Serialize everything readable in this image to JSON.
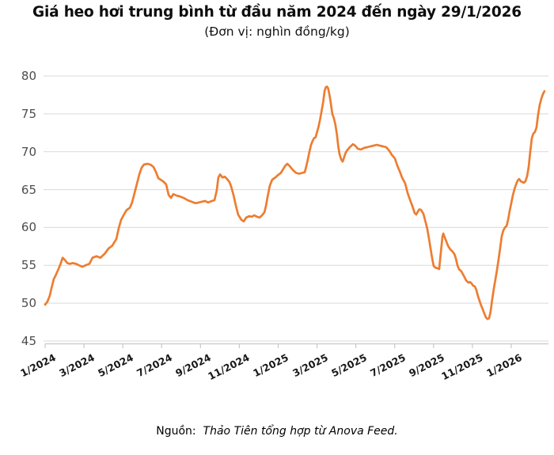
{
  "header": {
    "title": "Giá heo hơi trung bình từ đầu năm 2024 đến ngày 29/1/2026",
    "subtitle": "(Đơn vị: nghìn đồng/kg)"
  },
  "footer": {
    "source_label": "Nguồn:",
    "source_text": "Thảo Tiên tổng hợp từ Anova Feed."
  },
  "chart_data": {
    "type": "line",
    "title": "Giá heo hơi trung bình từ đầu năm 2024 đến ngày 29/1/2026",
    "unit": "nghìn đồng/kg",
    "legend_position": "none",
    "grid": "horizontal",
    "line_color": "#ED7D31",
    "gridline_color": "#d9d9d9",
    "axis_line_color": "#c9c9c9",
    "x_axis": {
      "tick_labels": [
        "1/2024",
        "3/2024",
        "5/2024",
        "7/2024",
        "9/2024",
        "11/2024",
        "1/2025",
        "3/2025",
        "5/2025",
        "7/2025",
        "9/2025",
        "11/2025",
        "1/2026"
      ],
      "tick_positions_months": [
        0,
        2,
        4,
        6,
        8,
        10,
        12,
        14,
        16,
        18,
        20,
        22,
        24
      ],
      "months_origin": "January 2024",
      "end_date_label": "29/1/2026"
    },
    "y_axis": {
      "ticks": [
        45,
        50,
        55,
        60,
        65,
        70,
        75,
        80
      ],
      "range": [
        45,
        80
      ]
    },
    "series": [
      {
        "name": "Giá heo hơi trung bình (nghìn đồng/kg)",
        "x_unit": "months since 1/2024",
        "points": [
          [
            0,
            49.8
          ],
          [
            0.12,
            50.2
          ],
          [
            0.24,
            51.0
          ],
          [
            0.33,
            52.0
          ],
          [
            0.45,
            53.2
          ],
          [
            0.53,
            53.6
          ],
          [
            0.65,
            54.3
          ],
          [
            0.77,
            55.0
          ],
          [
            0.9,
            56.0
          ],
          [
            1.02,
            55.7
          ],
          [
            1.14,
            55.3
          ],
          [
            1.26,
            55.2
          ],
          [
            1.43,
            55.3
          ],
          [
            1.59,
            55.2
          ],
          [
            1.75,
            55.0
          ],
          [
            1.92,
            54.8
          ],
          [
            2.08,
            55.0
          ],
          [
            2.28,
            55.2
          ],
          [
            2.44,
            56.0
          ],
          [
            2.65,
            56.2
          ],
          [
            2.85,
            56.0
          ],
          [
            3.06,
            56.5
          ],
          [
            3.26,
            57.2
          ],
          [
            3.46,
            57.6
          ],
          [
            3.67,
            58.5
          ],
          [
            3.79,
            59.9
          ],
          [
            3.91,
            61.0
          ],
          [
            4.08,
            61.8
          ],
          [
            4.2,
            62.3
          ],
          [
            4.36,
            62.6
          ],
          [
            4.48,
            63.3
          ],
          [
            4.6,
            64.5
          ],
          [
            4.73,
            65.8
          ],
          [
            4.85,
            67.0
          ],
          [
            4.97,
            67.9
          ],
          [
            5.09,
            68.3
          ],
          [
            5.26,
            68.4
          ],
          [
            5.42,
            68.3
          ],
          [
            5.58,
            68.0
          ],
          [
            5.71,
            67.3
          ],
          [
            5.83,
            66.5
          ],
          [
            5.95,
            66.3
          ],
          [
            6.07,
            66.1
          ],
          [
            6.23,
            65.7
          ],
          [
            6.36,
            64.3
          ],
          [
            6.48,
            63.9
          ],
          [
            6.6,
            64.4
          ],
          [
            6.77,
            64.2
          ],
          [
            6.93,
            64.1
          ],
          [
            7.13,
            63.9
          ],
          [
            7.34,
            63.6
          ],
          [
            7.54,
            63.4
          ],
          [
            7.74,
            63.2
          ],
          [
            7.91,
            63.3
          ],
          [
            8.07,
            63.4
          ],
          [
            8.23,
            63.5
          ],
          [
            8.39,
            63.3
          ],
          [
            8.6,
            63.5
          ],
          [
            8.72,
            63.6
          ],
          [
            8.84,
            64.9
          ],
          [
            8.92,
            66.6
          ],
          [
            9.01,
            67.0
          ],
          [
            9.13,
            66.6
          ],
          [
            9.25,
            66.7
          ],
          [
            9.37,
            66.4
          ],
          [
            9.49,
            66.0
          ],
          [
            9.58,
            65.4
          ],
          [
            9.7,
            64.3
          ],
          [
            9.82,
            62.9
          ],
          [
            9.94,
            61.7
          ],
          [
            10.11,
            61.0
          ],
          [
            10.23,
            60.8
          ],
          [
            10.35,
            61.3
          ],
          [
            10.51,
            61.5
          ],
          [
            10.64,
            61.4
          ],
          [
            10.76,
            61.6
          ],
          [
            10.92,
            61.4
          ],
          [
            11.04,
            61.3
          ],
          [
            11.17,
            61.6
          ],
          [
            11.29,
            62.0
          ],
          [
            11.37,
            62.8
          ],
          [
            11.45,
            64.0
          ],
          [
            11.57,
            65.5
          ],
          [
            11.69,
            66.3
          ],
          [
            11.86,
            66.6
          ],
          [
            11.98,
            66.9
          ],
          [
            12.14,
            67.2
          ],
          [
            12.35,
            68.1
          ],
          [
            12.47,
            68.4
          ],
          [
            12.59,
            68.1
          ],
          [
            12.75,
            67.6
          ],
          [
            12.92,
            67.2
          ],
          [
            13.08,
            67.1
          ],
          [
            13.24,
            67.2
          ],
          [
            13.37,
            67.3
          ],
          [
            13.45,
            68.1
          ],
          [
            13.53,
            69.0
          ],
          [
            13.61,
            70.0
          ],
          [
            13.69,
            70.9
          ],
          [
            13.77,
            71.4
          ],
          [
            13.85,
            71.8
          ],
          [
            13.93,
            71.9
          ],
          [
            14.0,
            72.6
          ],
          [
            14.08,
            73.3
          ],
          [
            14.16,
            74.3
          ],
          [
            14.24,
            75.4
          ],
          [
            14.32,
            76.6
          ],
          [
            14.39,
            78.0
          ],
          [
            14.45,
            78.5
          ],
          [
            14.51,
            78.6
          ],
          [
            14.57,
            78.4
          ],
          [
            14.65,
            77.4
          ],
          [
            14.71,
            76.4
          ],
          [
            14.79,
            75.0
          ],
          [
            14.87,
            74.4
          ],
          [
            14.95,
            73.5
          ],
          [
            15.03,
            72.2
          ],
          [
            15.09,
            70.8
          ],
          [
            15.16,
            69.7
          ],
          [
            15.24,
            69.0
          ],
          [
            15.32,
            68.7
          ],
          [
            15.4,
            69.3
          ],
          [
            15.48,
            69.9
          ],
          [
            15.56,
            70.2
          ],
          [
            15.69,
            70.6
          ],
          [
            15.85,
            71.0
          ],
          [
            15.97,
            70.8
          ],
          [
            16.1,
            70.4
          ],
          [
            16.26,
            70.3
          ],
          [
            16.42,
            70.5
          ],
          [
            16.59,
            70.6
          ],
          [
            16.75,
            70.7
          ],
          [
            16.91,
            70.8
          ],
          [
            17.07,
            70.9
          ],
          [
            17.24,
            70.8
          ],
          [
            17.4,
            70.7
          ],
          [
            17.56,
            70.6
          ],
          [
            17.73,
            70.1
          ],
          [
            17.85,
            69.6
          ],
          [
            18.01,
            69.1
          ],
          [
            18.13,
            68.2
          ],
          [
            18.26,
            67.4
          ],
          [
            18.38,
            66.6
          ],
          [
            18.54,
            65.8
          ],
          [
            18.66,
            64.6
          ],
          [
            18.78,
            63.7
          ],
          [
            18.91,
            62.8
          ],
          [
            19.03,
            61.9
          ],
          [
            19.11,
            61.7
          ],
          [
            19.19,
            62.1
          ],
          [
            19.27,
            62.4
          ],
          [
            19.36,
            62.3
          ],
          [
            19.48,
            61.8
          ],
          [
            19.6,
            60.6
          ],
          [
            19.68,
            59.8
          ],
          [
            19.76,
            58.6
          ],
          [
            19.84,
            57.3
          ],
          [
            19.93,
            55.9
          ],
          [
            20.01,
            54.9
          ],
          [
            20.09,
            54.7
          ],
          [
            20.21,
            54.6
          ],
          [
            20.29,
            54.5
          ],
          [
            20.37,
            56.6
          ],
          [
            20.46,
            58.8
          ],
          [
            20.5,
            59.2
          ],
          [
            20.62,
            58.4
          ],
          [
            20.74,
            57.6
          ],
          [
            20.86,
            57.1
          ],
          [
            20.95,
            56.9
          ],
          [
            21.07,
            56.5
          ],
          [
            21.15,
            55.9
          ],
          [
            21.23,
            55.0
          ],
          [
            21.31,
            54.5
          ],
          [
            21.43,
            54.2
          ],
          [
            21.56,
            53.6
          ],
          [
            21.68,
            53.0
          ],
          [
            21.8,
            52.7
          ],
          [
            21.88,
            52.8
          ],
          [
            21.96,
            52.6
          ],
          [
            22.04,
            52.3
          ],
          [
            22.13,
            52.2
          ],
          [
            22.21,
            51.7
          ],
          [
            22.29,
            50.9
          ],
          [
            22.37,
            50.3
          ],
          [
            22.45,
            49.7
          ],
          [
            22.53,
            49.2
          ],
          [
            22.62,
            48.6
          ],
          [
            22.7,
            48.1
          ],
          [
            22.78,
            47.9
          ],
          [
            22.86,
            48.0
          ],
          [
            22.94,
            48.9
          ],
          [
            23.02,
            50.5
          ],
          [
            23.11,
            52.0
          ],
          [
            23.19,
            53.2
          ],
          [
            23.27,
            54.4
          ],
          [
            23.35,
            55.8
          ],
          [
            23.43,
            57.3
          ],
          [
            23.51,
            58.8
          ],
          [
            23.59,
            59.6
          ],
          [
            23.68,
            60.0
          ],
          [
            23.76,
            60.2
          ],
          [
            23.84,
            61.0
          ],
          [
            23.92,
            62.2
          ],
          [
            24.0,
            63.2
          ],
          [
            24.08,
            64.2
          ],
          [
            24.16,
            65.0
          ],
          [
            24.25,
            65.7
          ],
          [
            24.33,
            66.2
          ],
          [
            24.41,
            66.4
          ],
          [
            24.49,
            66.1
          ],
          [
            24.57,
            66.0
          ],
          [
            24.65,
            65.9
          ],
          [
            24.73,
            66.1
          ],
          [
            24.82,
            66.8
          ],
          [
            24.9,
            68.0
          ],
          [
            24.98,
            70.0
          ],
          [
            25.06,
            71.8
          ],
          [
            25.14,
            72.4
          ],
          [
            25.22,
            72.6
          ],
          [
            25.3,
            73.2
          ],
          [
            25.38,
            74.8
          ],
          [
            25.47,
            76.2
          ],
          [
            25.55,
            77.0
          ],
          [
            25.63,
            77.6
          ],
          [
            25.71,
            78.0
          ]
        ]
      }
    ]
  }
}
